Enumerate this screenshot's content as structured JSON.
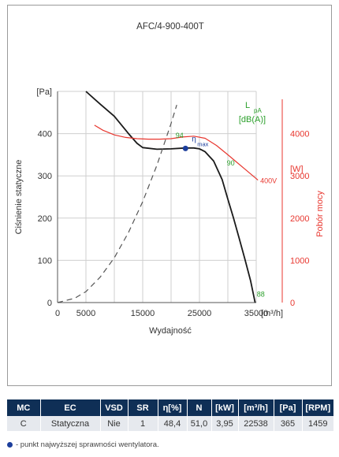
{
  "chart_data": {
    "type": "line",
    "title": "AFC/4-900-400T",
    "xlabel": "Wydajność",
    "x_unit": "[m³/h]",
    "ylabel": "Ciśnienie statyczne",
    "y_unit": "[Pa]",
    "y2label": "Pobór mocy",
    "y2_unit": "[W]",
    "xlim": [
      0,
      35000
    ],
    "ylim": [
      0,
      500
    ],
    "y2lim": [
      0,
      5000
    ],
    "x_ticks": [
      "0",
      "5000",
      "15000",
      "25000",
      "35000"
    ],
    "x_grid": [
      0,
      5000,
      10000,
      15000,
      20000,
      25000,
      30000,
      35000
    ],
    "y_ticks": [
      0,
      100,
      200,
      300,
      400
    ],
    "y2_ticks": [
      0,
      1000,
      2000,
      3000,
      4000
    ],
    "grid": true,
    "series": [
      {
        "id": "pressure",
        "color": "#1a1a1a",
        "axis": "left",
        "x": [
          5000,
          7500,
          10000,
          12500,
          14000,
          15000,
          17500,
          20000,
          22500,
          24000,
          25000,
          26000,
          27500,
          29000,
          30000,
          31000,
          32000,
          33000,
          34000,
          34800
        ],
        "y": [
          500,
          470,
          441,
          400,
          377,
          367,
          363,
          364,
          366,
          366,
          364,
          357,
          335,
          291,
          245,
          200,
          152,
          103,
          52,
          0
        ]
      },
      {
        "id": "power",
        "name": "400V",
        "color": "#e8372f",
        "axis": "right",
        "x": [
          6500,
          8000,
          10000,
          12000,
          14000,
          16000,
          18000,
          20000,
          22000,
          24000,
          26000,
          28000,
          30000,
          31500,
          33000,
          35300
        ],
        "y": [
          4200,
          4080,
          3970,
          3910,
          3880,
          3870,
          3870,
          3880,
          3920,
          3940,
          3890,
          3720,
          3500,
          3330,
          3160,
          2900
        ]
      },
      {
        "id": "system-curve",
        "color": "#555555",
        "dashed": true,
        "axis": "left",
        "x": [
          0,
          3000,
          5000,
          7500,
          10000,
          12500,
          15000,
          17500,
          20000,
          21000
        ],
        "y": [
          0,
          10,
          26,
          60,
          106,
          166,
          239,
          325,
          424,
          468
        ]
      }
    ],
    "annotations": [
      {
        "text": "94",
        "x": 21500,
        "y": 390,
        "color": "#2ca02c"
      },
      {
        "text": "90",
        "x": 30500,
        "y": 325,
        "color": "#2ca02c"
      },
      {
        "text": "88",
        "x": 35800,
        "y": 14,
        "color": "#2ca02c"
      }
    ],
    "lpa_label": "L",
    "lpa_sub": "pA",
    "lpa_unit": "[dB(A)]",
    "lpa_color": "#2ca02c",
    "eta_label": "η",
    "eta_sub": "max",
    "eta_color": "#1d3f9c",
    "eta_point": {
      "x": 22538,
      "y": 365
    }
  },
  "table": {
    "headers": [
      "MC",
      "EC",
      "VSD",
      "SR",
      "η[%]",
      "N",
      "[kW]",
      "[m³/h]",
      "[Pa]",
      "[RPM]"
    ],
    "row": [
      "C",
      "Statyczna",
      "Nie",
      "1",
      "48,4",
      "51,0",
      "3,95",
      "22538",
      "365",
      "1459"
    ]
  },
  "footnote": "- punkt najwyższej sprawności wentylatora."
}
